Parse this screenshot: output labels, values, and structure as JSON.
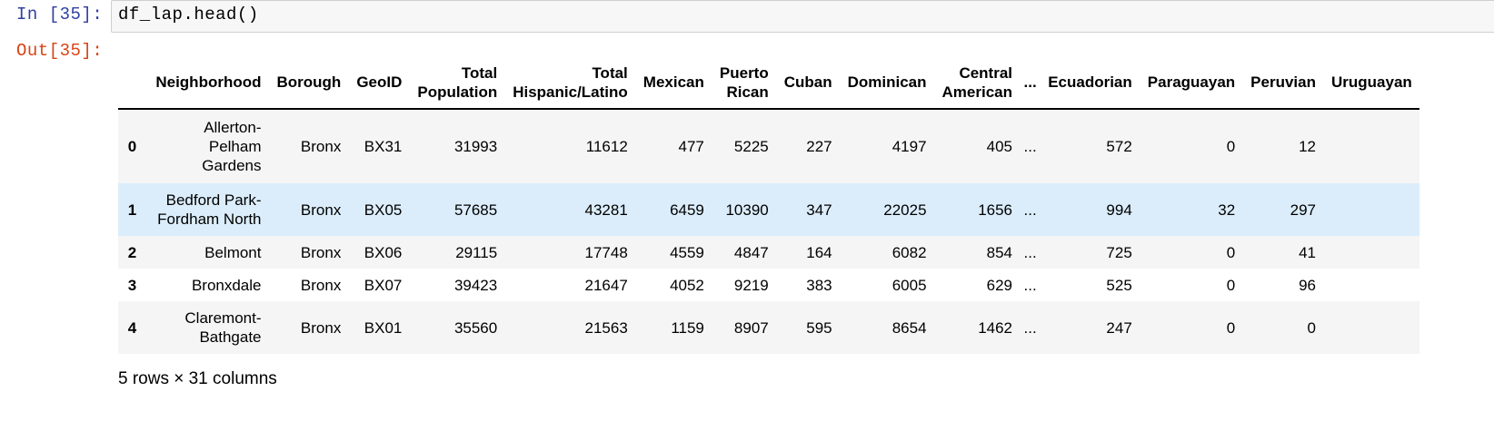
{
  "cell": {
    "in_prompt": "In [35]:",
    "code": "df_lap.head()",
    "out_prompt": "Out[35]:"
  },
  "table": {
    "columns": [
      "",
      "Neighborhood",
      "Borough",
      "GeoID",
      "Total Population",
      "Total Hispanic/Latino",
      "Mexican",
      "Puerto Rican",
      "Cuban",
      "Dominican",
      "Central American",
      "...",
      "Ecuadorian",
      "Paraguayan",
      "Peruvian",
      "Uruguayan"
    ],
    "rows": [
      [
        "0",
        "Allerton-Pelham Gardens",
        "Bronx",
        "BX31",
        "31993",
        "11612",
        "477",
        "5225",
        "227",
        "4197",
        "405",
        "...",
        "572",
        "0",
        "12",
        ""
      ],
      [
        "1",
        "Bedford Park-Fordham North",
        "Bronx",
        "BX05",
        "57685",
        "43281",
        "6459",
        "10390",
        "347",
        "22025",
        "1656",
        "...",
        "994",
        "32",
        "297",
        ""
      ],
      [
        "2",
        "Belmont",
        "Bronx",
        "BX06",
        "29115",
        "17748",
        "4559",
        "4847",
        "164",
        "6082",
        "854",
        "...",
        "725",
        "0",
        "41",
        ""
      ],
      [
        "3",
        "Bronxdale",
        "Bronx",
        "BX07",
        "39423",
        "21647",
        "4052",
        "9219",
        "383",
        "6005",
        "629",
        "...",
        "525",
        "0",
        "96",
        ""
      ],
      [
        "4",
        "Claremont-Bathgate",
        "Bronx",
        "BX01",
        "35560",
        "21563",
        "1159",
        "8907",
        "595",
        "8654",
        "1462",
        "...",
        "247",
        "0",
        "0",
        ""
      ]
    ],
    "highlighted_row": 1
  },
  "summary": "5 rows × 31 columns"
}
